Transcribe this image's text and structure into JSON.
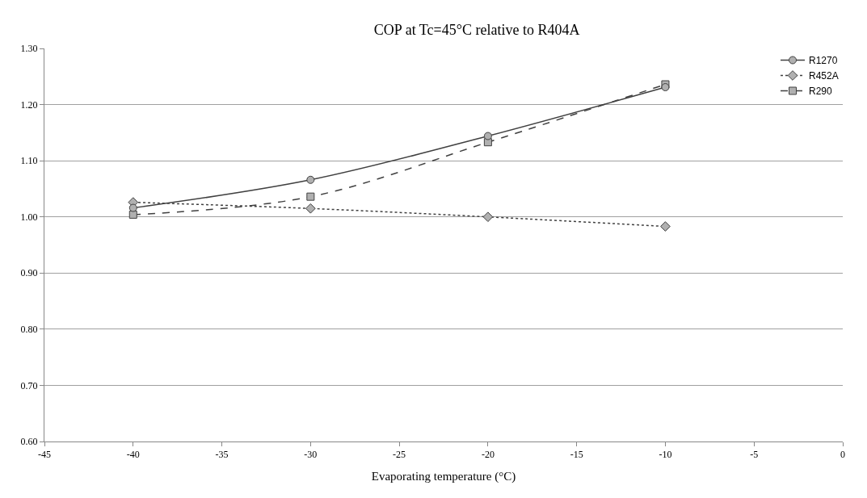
{
  "chart_data": {
    "type": "line",
    "title": "COP at Tc=45°C relative to R404A",
    "xlabel": "Evaporating temperature (°C)",
    "x": [
      -40,
      -30,
      -20,
      -10
    ],
    "xlim": [
      -45,
      0
    ],
    "xticks": [
      -45,
      -40,
      -35,
      -30,
      -25,
      -20,
      -15,
      -10,
      -5,
      0
    ],
    "ylim": [
      0.6,
      1.3
    ],
    "yticks": [
      {
        "value": 0.6,
        "label": "0.60"
      },
      {
        "value": 0.7,
        "label": "0.70"
      },
      {
        "value": 0.8,
        "label": "0.80"
      },
      {
        "value": 0.9,
        "label": "0.90"
      },
      {
        "value": 1.0,
        "label": "1.00"
      },
      {
        "value": 1.1,
        "label": "1.10"
      },
      {
        "value": 1.2,
        "label": "1.20"
      },
      {
        "value": 1.3,
        "label": "1.30"
      }
    ],
    "grid": "y",
    "legend": "top right",
    "series": [
      {
        "name": "R1270",
        "color": "#404040",
        "values": [
          1.016,
          1.066,
          1.144,
          1.231
        ],
        "marker": "circle",
        "line_style": "solid"
      },
      {
        "name": "R452A",
        "color": "#404040",
        "values": [
          1.026,
          1.015,
          1.0,
          0.983
        ],
        "marker": "diamond",
        "line_style": "dotted"
      },
      {
        "name": "R290",
        "color": "#404040",
        "values": [
          1.004,
          1.036,
          1.133,
          1.236
        ],
        "marker": "square",
        "line_style": "dashed"
      }
    ]
  }
}
